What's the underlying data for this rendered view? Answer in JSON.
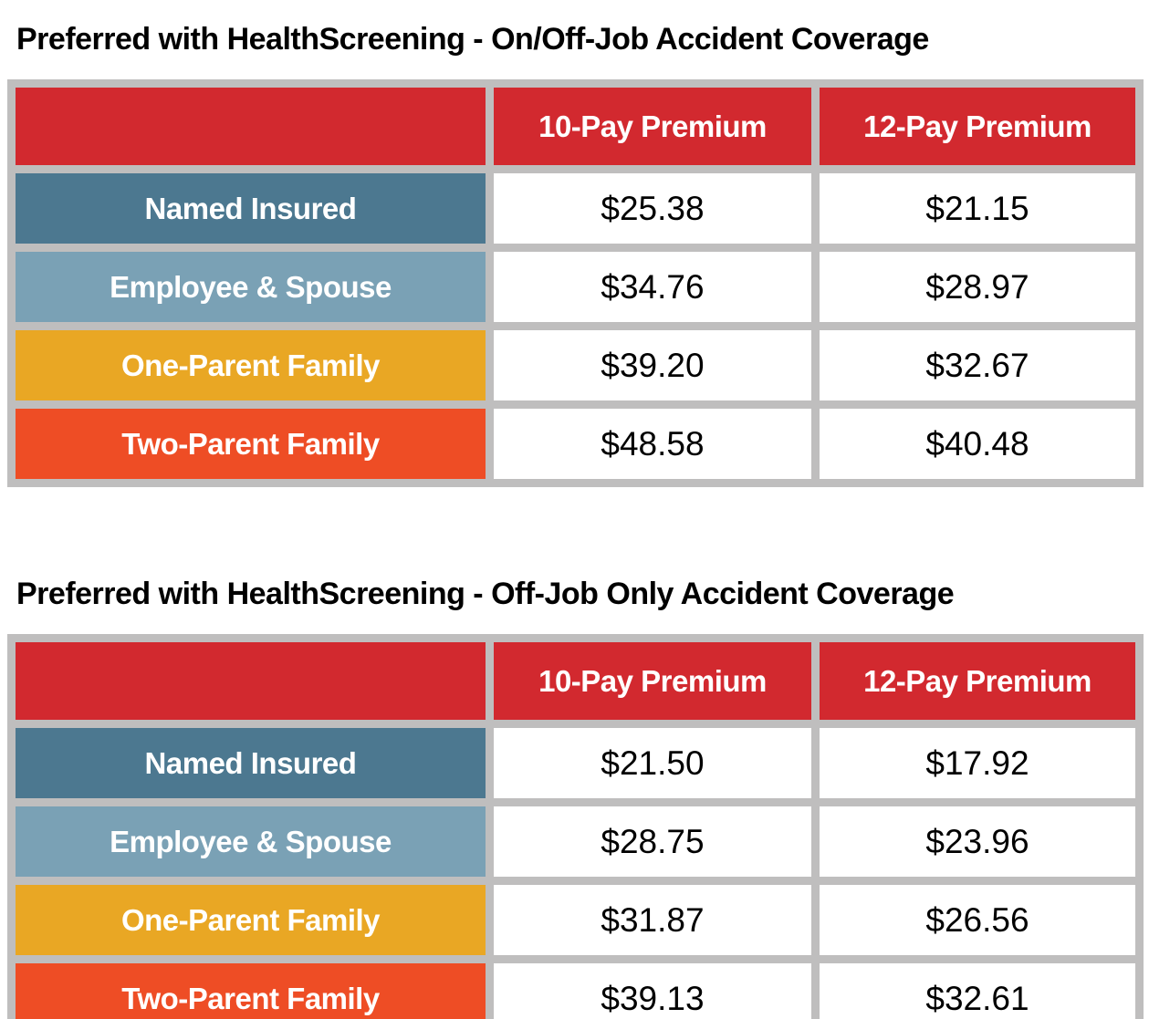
{
  "colors": {
    "header_bg": "#D2292F",
    "row_named_insured": "#4C7890",
    "row_employee_spouse": "#7AA1B5",
    "row_one_parent_family": "#E9A724",
    "row_two_parent_family": "#EE4D25",
    "grid": "#BFBEBE",
    "label_text": "#FFFFFF",
    "value_text": "#000000",
    "title_text": "#000000"
  },
  "tables": [
    {
      "title": "Preferred with HealthScreening - On/Off-Job Accident Coverage",
      "header": {
        "pay10": "10-Pay Premium",
        "pay12": "12-Pay Premium"
      },
      "rows": [
        {
          "label": "Named Insured",
          "pay10": "$25.38",
          "pay12": "$21.15"
        },
        {
          "label": "Employee & Spouse",
          "pay10": "$34.76",
          "pay12": "$28.97"
        },
        {
          "label": "One-Parent Family",
          "pay10": "$39.20",
          "pay12": "$32.67"
        },
        {
          "label": "Two-Parent Family",
          "pay10": "$48.58",
          "pay12": "$40.48"
        }
      ]
    },
    {
      "title": "Preferred with HealthScreening - Off-Job Only Accident Coverage",
      "header": {
        "pay10": "10-Pay Premium",
        "pay12": "12-Pay Premium"
      },
      "rows": [
        {
          "label": "Named Insured",
          "pay10": "$21.50",
          "pay12": "$17.92"
        },
        {
          "label": "Employee & Spouse",
          "pay10": "$28.75",
          "pay12": "$23.96"
        },
        {
          "label": "One-Parent Family",
          "pay10": "$31.87",
          "pay12": "$26.56"
        },
        {
          "label": "Two-Parent Family",
          "pay10": "$39.13",
          "pay12": "$32.61"
        }
      ]
    }
  ]
}
